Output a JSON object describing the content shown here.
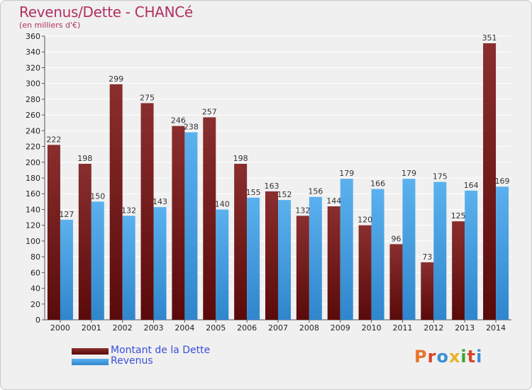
{
  "header": {
    "title": "Revenus/Dette - CHANCé",
    "subtitle": "(en milliers d'€)"
  },
  "legend": {
    "debt_label": "Montant de la Dette",
    "revenue_label": "Revenus"
  },
  "logo": {
    "text": "Proxiti",
    "colors": [
      "#e8742a",
      "#d9442a",
      "#3d8fd6",
      "#e8b32a",
      "#3aa832",
      "#d9442a",
      "#3d8fd6"
    ]
  },
  "colors": {
    "debt": "#7a1a1a",
    "revenue": "#4aa3e8",
    "title": "#b03060"
  },
  "chart_data": {
    "type": "bar",
    "categories": [
      "2000",
      "2001",
      "2002",
      "2003",
      "2004",
      "2005",
      "2006",
      "2007",
      "2008",
      "2009",
      "2010",
      "2011",
      "2012",
      "2013",
      "2014"
    ],
    "series": [
      {
        "name": "Montant de la Dette",
        "values": [
          222,
          198,
          299,
          275,
          246,
          257,
          198,
          163,
          132,
          144,
          120,
          96,
          73,
          125,
          351
        ]
      },
      {
        "name": "Revenus",
        "values": [
          127,
          150,
          132,
          143,
          238,
          140,
          155,
          152,
          156,
          179,
          166,
          179,
          175,
          164,
          169
        ]
      }
    ],
    "yticks": [
      0,
      20,
      40,
      60,
      80,
      100,
      120,
      140,
      160,
      180,
      200,
      220,
      240,
      260,
      280,
      300,
      320,
      340,
      360
    ],
    "ylim": [
      0,
      360
    ],
    "grid": true,
    "legend_position": "bottom-left"
  }
}
